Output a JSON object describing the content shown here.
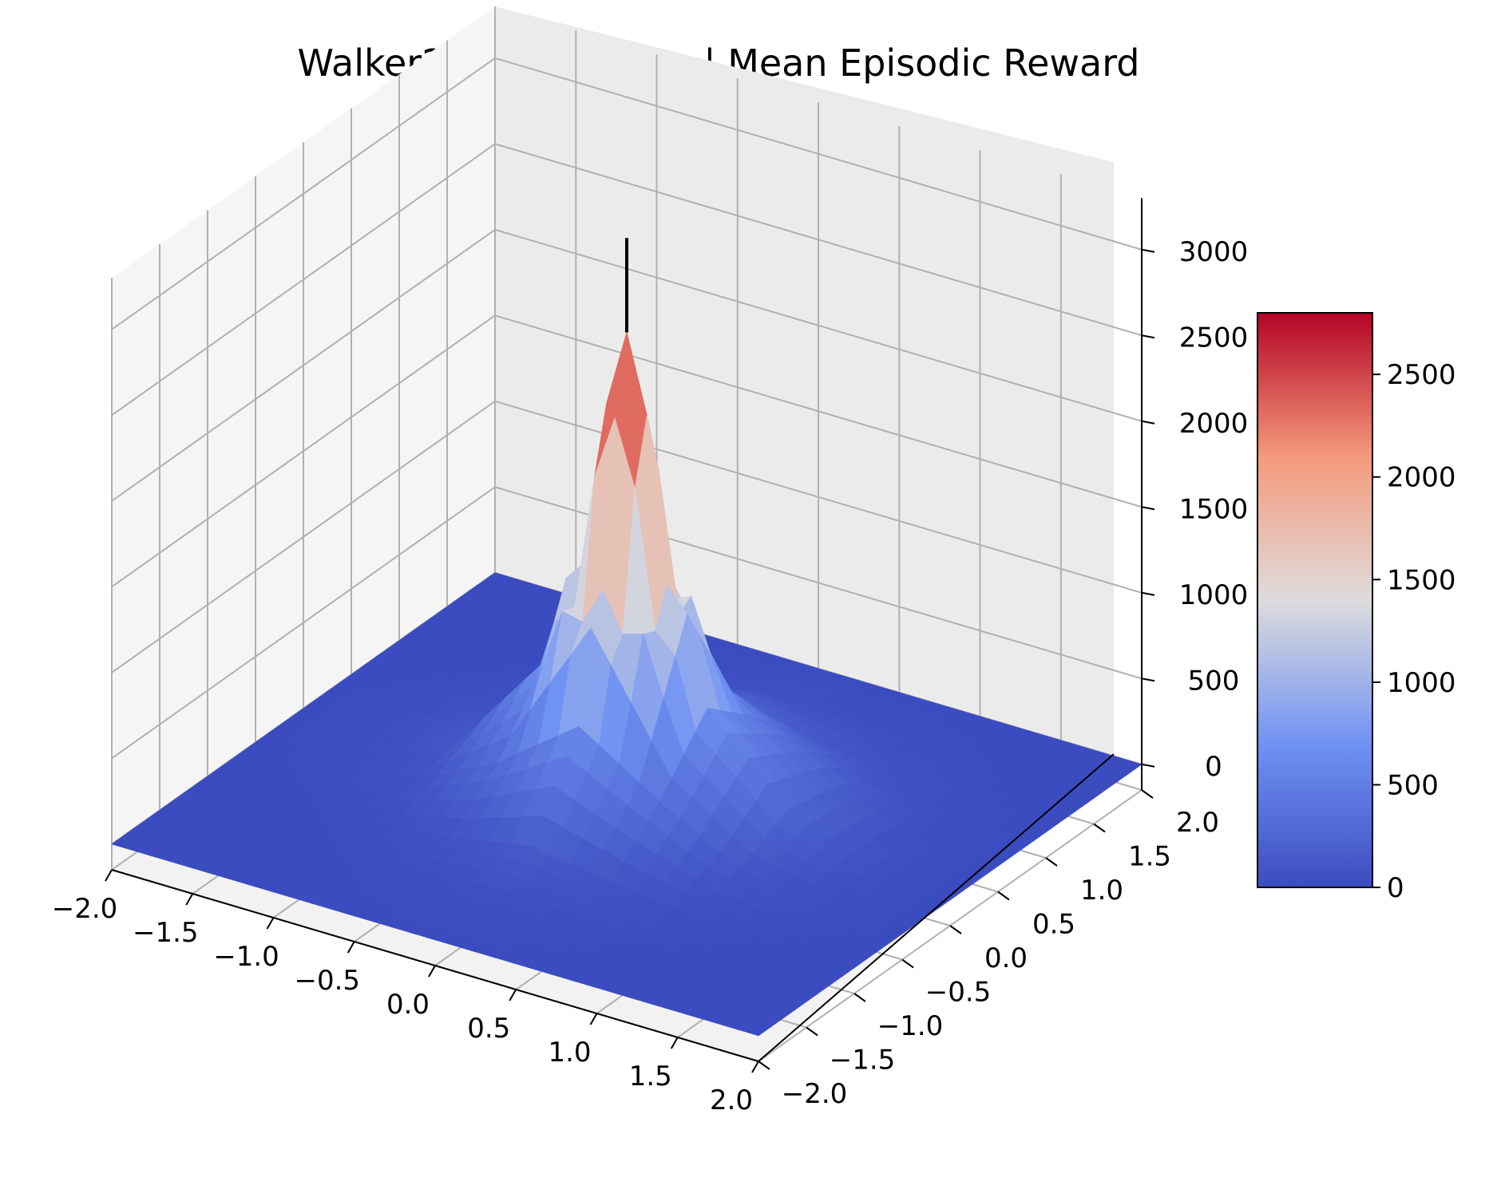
{
  "chart_data": {
    "type": "surface3d",
    "title": "Walker2d-v2 | Mujoco | Mean Episodic Reward",
    "xlabel": "",
    "ylabel": "",
    "zlabel": "",
    "xlim": [
      -2.0,
      2.0
    ],
    "ylim": [
      -2.0,
      2.0
    ],
    "zlim": [
      -150,
      3300
    ],
    "x_ticks": [
      "−2.0",
      "−1.5",
      "−1.0",
      "−0.5",
      "0.0",
      "0.5",
      "1.0",
      "1.5",
      "2.0"
    ],
    "y_ticks": [
      "−2.0",
      "−1.5",
      "−1.0",
      "−0.5",
      "0.0",
      "0.5",
      "1.0",
      "1.5",
      "2.0"
    ],
    "z_ticks": [
      "0",
      "500",
      "1000",
      "1500",
      "2000",
      "2500",
      "3000"
    ],
    "colorbar": {
      "colormap": "coolwarm",
      "min": 0,
      "max": 2800,
      "ticks": [
        "0",
        "500",
        "1000",
        "1500",
        "2000",
        "2500"
      ]
    },
    "peak": {
      "x": 0.0,
      "y": 0.0,
      "z": 2750
    },
    "surface": {
      "x": [
        -2.0,
        -1.5,
        -1.0,
        -0.5,
        0.0,
        0.5,
        1.0,
        1.5,
        2.0
      ],
      "y": [
        -2.0,
        -1.5,
        -1.0,
        -0.5,
        0.0,
        0.5,
        1.0,
        1.5,
        2.0
      ],
      "z": [
        [
          0,
          0,
          0,
          0,
          0,
          0,
          0,
          0,
          0
        ],
        [
          0,
          0,
          0,
          10,
          20,
          10,
          0,
          0,
          0
        ],
        [
          0,
          0,
          10,
          60,
          150,
          80,
          20,
          0,
          0
        ],
        [
          0,
          10,
          60,
          300,
          650,
          350,
          100,
          20,
          0
        ],
        [
          0,
          20,
          120,
          700,
          2750,
          700,
          250,
          40,
          0
        ],
        [
          0,
          10,
          70,
          350,
          750,
          450,
          180,
          30,
          0
        ],
        [
          0,
          0,
          20,
          100,
          250,
          150,
          60,
          10,
          0
        ],
        [
          0,
          0,
          0,
          20,
          50,
          30,
          10,
          0,
          0
        ],
        [
          0,
          0,
          0,
          0,
          0,
          0,
          0,
          0,
          0
        ]
      ]
    }
  }
}
